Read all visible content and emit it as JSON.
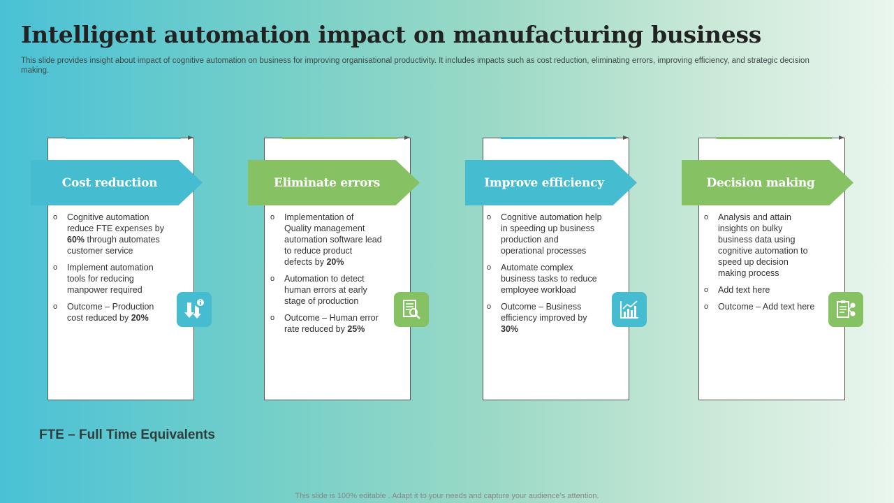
{
  "title": "Intelligent automation impact on manufacturing business",
  "subtitle": "This slide provides insight about impact of cognitive automation on business for improving organisational productivity. It includes impacts such as cost reduction, eliminating errors, improving efficiency, and strategic decision making.",
  "colors": {
    "blue": "#46bcd1",
    "green": "#86c263"
  },
  "cards": [
    {
      "heading": "Cost reduction",
      "icon": "arrows-down-info-icon",
      "points": [
        [
          "Cognitive automation reduce FTE expenses by ",
          "60%",
          " through automates customer service"
        ],
        [
          "Implement automation tools for reducing manpower required",
          "",
          ""
        ],
        [
          "Outcome – Production cost reduced by ",
          "20%",
          ""
        ]
      ]
    },
    {
      "heading": "Eliminate errors",
      "icon": "document-magnifier-icon",
      "points": [
        [
          "Implementation of Quality management automation software lead to reduce product defects by ",
          "20%",
          ""
        ],
        [
          "Automation to detect human errors at early stage of production",
          "",
          ""
        ],
        [
          "Outcome – Human error rate reduced by ",
          "25%",
          ""
        ]
      ]
    },
    {
      "heading": "Improve efficiency",
      "icon": "growth-chart-icon",
      "points": [
        [
          "Cognitive automation help in speeding up business production and operational processes",
          "",
          ""
        ],
        [
          "Automate complex business tasks to reduce employee workload",
          "",
          ""
        ],
        [
          "Outcome – Business efficiency improved by ",
          "30%",
          ""
        ]
      ]
    },
    {
      "heading": "Decision making",
      "icon": "clipboard-share-icon",
      "points": [
        [
          "Analysis and attain insights on bulky business data using cognitive automation to speed up decision making process",
          "",
          ""
        ],
        [
          "Add text here",
          "",
          ""
        ],
        [
          "Outcome – Add text here",
          "",
          ""
        ]
      ]
    }
  ],
  "fte_note": "FTE – Full Time Equivalents",
  "footer": "This slide is 100% editable . Adapt it to your needs and capture your audience’s attention."
}
